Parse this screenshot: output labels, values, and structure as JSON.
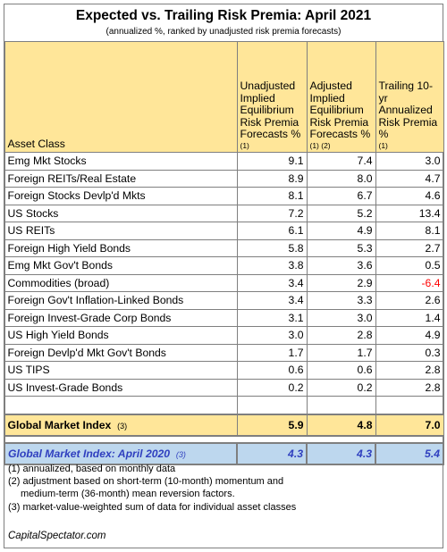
{
  "title": "Expected vs. Trailing Risk Premia: April 2021",
  "subtitle": "(annualized %, ranked by unadjusted risk premia forecasts)",
  "headers": {
    "asset_class": "Asset Class",
    "col1": "Unadjusted Implied Equilibrium Risk Premia Forecasts %",
    "col1_note": "(1)",
    "col2": "Adjusted Implied Equilibrium Risk Premia Forecasts %",
    "col2_note": "(1) (2)",
    "col3": "Trailing 10-yr Annualized Risk Premia %",
    "col3_note": "(1)"
  },
  "rows": [
    {
      "name": "Emg Mkt Stocks",
      "unadj": "9.1",
      "adj": "7.4",
      "trail": "3.0"
    },
    {
      "name": "Foreign REITs/Real Estate",
      "unadj": "8.9",
      "adj": "8.0",
      "trail": "4.7"
    },
    {
      "name": "Foreign Stocks Devlp'd Mkts",
      "unadj": "8.1",
      "adj": "6.7",
      "trail": "4.6"
    },
    {
      "name": "US Stocks",
      "unadj": "7.2",
      "adj": "5.2",
      "trail": "13.4"
    },
    {
      "name": "US REITs",
      "unadj": "6.1",
      "adj": "4.9",
      "trail": "8.1"
    },
    {
      "name": "Foreign High Yield Bonds",
      "unadj": "5.8",
      "adj": "5.3",
      "trail": "2.7"
    },
    {
      "name": "Emg Mkt Gov't Bonds",
      "unadj": "3.8",
      "adj": "3.6",
      "trail": "0.5"
    },
    {
      "name": "Commodities (broad)",
      "unadj": "3.4",
      "adj": "2.9",
      "trail": "-6.4"
    },
    {
      "name": "Foreign Gov't Inflation-Linked Bonds",
      "unadj": "3.4",
      "adj": "3.3",
      "trail": "2.6"
    },
    {
      "name": "Foreign Invest-Grade Corp Bonds",
      "unadj": "3.1",
      "adj": "3.0",
      "trail": "1.4"
    },
    {
      "name": "US High Yield Bonds",
      "unadj": "3.0",
      "adj": "2.8",
      "trail": "4.9"
    },
    {
      "name": "Foreign Devlp'd Mkt Gov't Bonds",
      "unadj": "1.7",
      "adj": "1.7",
      "trail": "0.3"
    },
    {
      "name": "US TIPS",
      "unadj": "0.6",
      "adj": "0.6",
      "trail": "2.8"
    },
    {
      "name": "US Invest-Grade Bonds",
      "unadj": "0.2",
      "adj": "0.2",
      "trail": "2.8"
    }
  ],
  "gmi": {
    "label": "Global Market Index",
    "note": "(3)",
    "unadj": "5.9",
    "adj": "4.8",
    "trail": "7.0"
  },
  "gmi_2020": {
    "label": "Global Market Index: April 2020",
    "note": "(3)",
    "unadj": "4.3",
    "adj": "4.3",
    "trail": "5.4"
  },
  "notes": [
    "(1) annualized, based on monthly data",
    "(2) adjustment based on short-term (10-month) momentum and",
    "medium-term (36-month) mean reversion factors.",
    "(3) market-value-weighted sum of data for individual asset classes"
  ],
  "source": "CapitalSpectator.com",
  "colors": {
    "header_fill": "#ffe699",
    "gmi2020_fill": "#bdd7ee",
    "gmi2020_text": "#2f3fbf",
    "negative": "#ff0000"
  }
}
